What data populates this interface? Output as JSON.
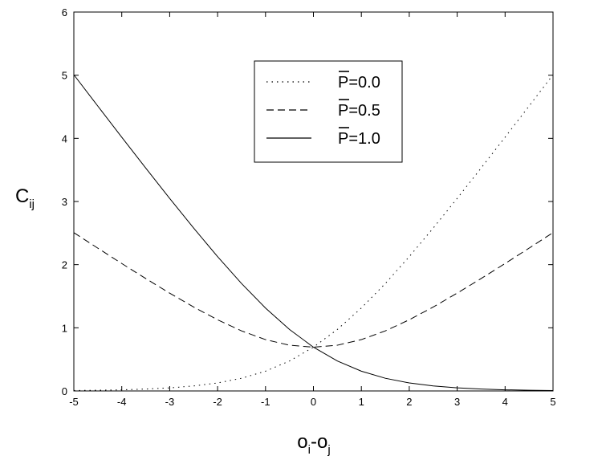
{
  "chart_data": {
    "type": "line",
    "title": "",
    "xlabel": "o",
    "xlabel_sub_i": "i",
    "xlabel_dash": "-o",
    "xlabel_sub_j": "j",
    "ylabel": "C",
    "ylabel_sub": "ij",
    "xlim": [
      -5,
      5
    ],
    "ylim": [
      0,
      6
    ],
    "xticks": [
      -5,
      -4,
      -3,
      -2,
      -1,
      0,
      1,
      2,
      3,
      4,
      5
    ],
    "yticks": [
      0,
      1,
      2,
      3,
      4,
      5,
      6
    ],
    "grid": false,
    "legend_placement": "top-center",
    "x": [
      -5,
      -4.5,
      -4,
      -3.5,
      -3,
      -2.5,
      -2,
      -1.5,
      -1,
      -0.5,
      0,
      0.5,
      1,
      1.5,
      2,
      2.5,
      3,
      3.5,
      4,
      4.5,
      5
    ],
    "series": [
      {
        "legend_symbol": "P",
        "legend_value": "=0.0",
        "dash": "dotted",
        "values": [
          0.007,
          0.011,
          0.018,
          0.03,
          0.049,
          0.079,
          0.127,
          0.201,
          0.313,
          0.474,
          0.693,
          0.974,
          1.313,
          1.701,
          2.127,
          2.579,
          3.049,
          3.53,
          4.018,
          4.511,
          5.007
        ]
      },
      {
        "legend_symbol": "P",
        "legend_value": "=0.5",
        "dash": "dashed",
        "values": [
          2.507,
          2.261,
          2.018,
          1.78,
          1.549,
          1.329,
          1.127,
          0.951,
          0.813,
          0.724,
          0.693,
          0.724,
          0.813,
          0.951,
          1.127,
          1.329,
          1.549,
          1.78,
          2.018,
          2.261,
          2.507
        ]
      },
      {
        "legend_symbol": "P",
        "legend_value": "=1.0",
        "dash": "solid",
        "values": [
          5.007,
          4.511,
          4.018,
          3.53,
          3.049,
          2.579,
          2.127,
          1.701,
          1.313,
          0.974,
          0.693,
          0.474,
          0.313,
          0.201,
          0.127,
          0.079,
          0.049,
          0.03,
          0.018,
          0.011,
          0.007
        ]
      }
    ]
  }
}
